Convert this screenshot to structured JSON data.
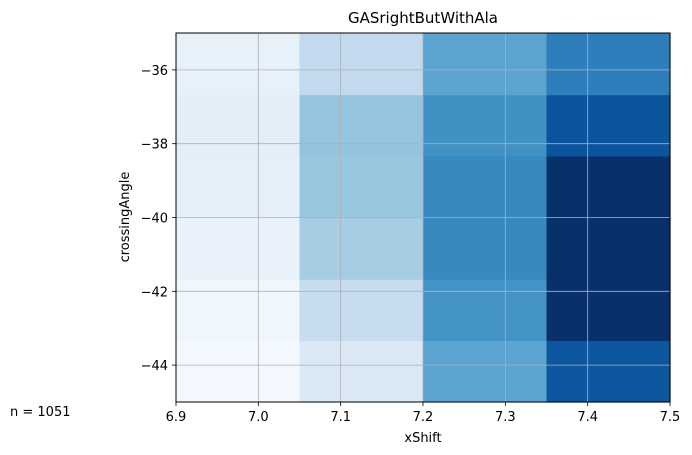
{
  "footnote": "n = 1051",
  "chart_data": {
    "type": "heatmap",
    "title": "GASrightButWithAla",
    "xlabel": "xShift",
    "ylabel": "crossingAngle",
    "xlim": [
      6.9,
      7.5
    ],
    "ylim": [
      -45,
      -35
    ],
    "grid": true,
    "x_edges": [
      6.9,
      7.05,
      7.2,
      7.35,
      7.5
    ],
    "y_edges": [
      -45,
      -43.33,
      -41.67,
      -40,
      -38.33,
      -36.67,
      -35
    ],
    "x_ticks": [
      6.9,
      7.0,
      7.1,
      7.2,
      7.3,
      7.4,
      7.5
    ],
    "x_tick_labels": [
      "6.9",
      "7.0",
      "7.1",
      "7.2",
      "7.3",
      "7.4",
      "7.5"
    ],
    "y_ticks": [
      -44,
      -42,
      -40,
      -38,
      -36
    ],
    "y_tick_labels": [
      "−44",
      "−42",
      "−40",
      "−38",
      "−36"
    ],
    "colormap": [
      "#f7fbff",
      "#deebf7",
      "#c6dbef",
      "#9ecae1",
      "#6baed6",
      "#4292c6",
      "#2171b5",
      "#08519c",
      "#08306b"
    ],
    "values": [
      [
        0.02,
        0.14,
        0.55,
        0.85
      ],
      [
        0.04,
        0.24,
        0.62,
        1.0
      ],
      [
        0.07,
        0.35,
        0.66,
        1.0
      ],
      [
        0.09,
        0.39,
        0.66,
        1.0
      ],
      [
        0.1,
        0.4,
        0.63,
        0.86
      ],
      [
        0.08,
        0.26,
        0.55,
        0.7
      ]
    ]
  }
}
